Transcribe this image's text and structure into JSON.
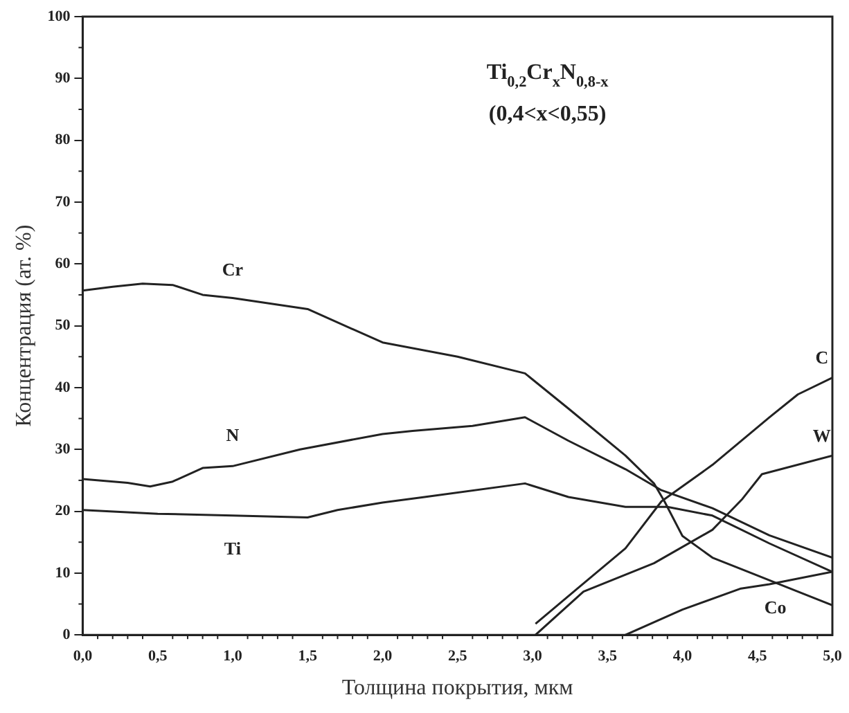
{
  "chart_data": {
    "type": "line",
    "xlabel": "Толщина покрытия, мкм",
    "ylabel": "Концентрация (ат. %)",
    "annotations": [
      "Ti$_{0,2}$Cr$_{x}$N$_{0,8-x}$",
      "(0,4<x<0,55)"
    ],
    "xlim": [
      0,
      5
    ],
    "xticks": [
      {
        "value": 0,
        "label": "0,0"
      },
      {
        "value": 0.5,
        "label": "0,5"
      },
      {
        "value": 1,
        "label": "1,0"
      },
      {
        "value": 1.5,
        "label": "1,5"
      },
      {
        "value": 2,
        "label": "2,0"
      },
      {
        "value": 2.5,
        "label": "2,5"
      },
      {
        "value": 3,
        "label": "3,0"
      },
      {
        "value": 3.5,
        "label": "3,5"
      },
      {
        "value": 4,
        "label": "4,0"
      },
      {
        "value": 4.5,
        "label": "4,5"
      },
      {
        "value": 5,
        "label": "5,0"
      }
    ],
    "ylim": [
      0,
      100
    ],
    "yticks": [
      0,
      10,
      20,
      30,
      40,
      50,
      60,
      70,
      80,
      90,
      100
    ],
    "grid": false,
    "legend": false,
    "series": [
      {
        "name": "Cr",
        "color": "#222222",
        "x": [
          0,
          0.2,
          0.4,
          0.6,
          0.8,
          1.0,
          1.5,
          2.0,
          2.5,
          2.95,
          3.24,
          3.62,
          3.81,
          3.88,
          4.0,
          4.2,
          4.48,
          4.77,
          5.0
        ],
        "values": [
          55.7,
          56.3,
          56.8,
          56.6,
          55,
          54.5,
          52.7,
          47.3,
          45,
          42.3,
          36.6,
          29,
          24.5,
          21.6,
          16,
          12.5,
          9.8,
          7,
          4.8
        ]
      },
      {
        "name": "N",
        "color": "#222222",
        "x": [
          0,
          0.3,
          0.45,
          0.6,
          0.8,
          1.0,
          1.45,
          2.0,
          2.2,
          2.6,
          2.95,
          3.24,
          3.62,
          3.86,
          4.2,
          4.58,
          5.0
        ],
        "values": [
          25.2,
          24.6,
          24,
          24.8,
          27,
          27.3,
          30,
          32.5,
          33,
          33.8,
          35.2,
          31.4,
          26.8,
          23.4,
          20.5,
          16.1,
          12.5
        ]
      },
      {
        "name": "Ti",
        "color": "#222222",
        "x": [
          0,
          0.5,
          1.0,
          1.5,
          1.7,
          2.0,
          2.28,
          2.95,
          3.24,
          3.62,
          3.9,
          4.2,
          4.58,
          5.0
        ],
        "values": [
          20.2,
          19.6,
          19.3,
          19,
          20.2,
          21.4,
          22.3,
          24.5,
          22.3,
          20.7,
          20.7,
          19.3,
          14.8,
          10.2
        ]
      },
      {
        "name": "C",
        "color": "#222222",
        "x": [
          3.02,
          3.3,
          3.62,
          3.86,
          4.2,
          4.58,
          4.77,
          5.0
        ],
        "values": [
          1.8,
          7.5,
          14,
          21.6,
          27.5,
          35.2,
          38.9,
          41.6
        ]
      },
      {
        "name": "W",
        "color": "#222222",
        "x": [
          3.02,
          3.34,
          3.81,
          4.2,
          4.4,
          4.53,
          5.0
        ],
        "values": [
          0,
          7,
          11.6,
          17,
          22,
          26,
          29
        ]
      },
      {
        "name": "Co",
        "color": "#222222",
        "x": [
          3.62,
          4.0,
          4.39,
          4.58,
          5.0
        ],
        "values": [
          0,
          4.1,
          7.5,
          8.2,
          10.2
        ]
      }
    ]
  }
}
